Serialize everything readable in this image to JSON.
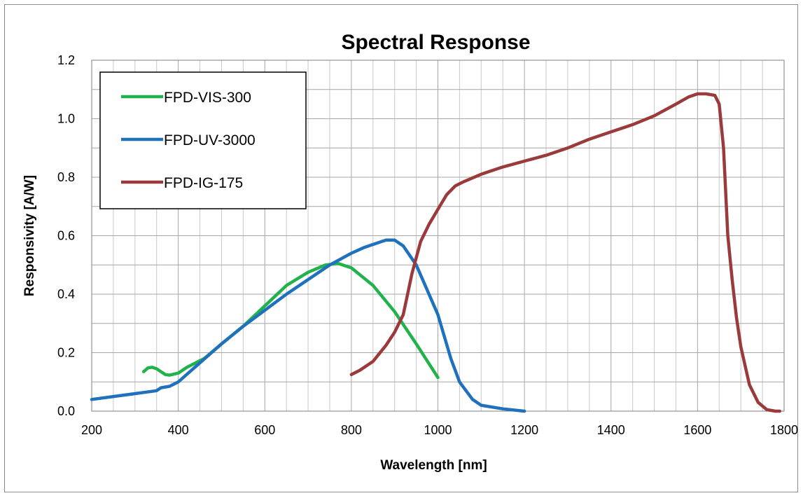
{
  "chart_data": {
    "type": "line",
    "title": "Spectral Response",
    "xlabel": "Wavelength [nm]",
    "ylabel": "Responsivity [A/W]",
    "xlim": [
      200,
      1800
    ],
    "ylim": [
      0.0,
      1.2
    ],
    "x_ticks": [
      "200",
      "400",
      "600",
      "800",
      "1000",
      "1200",
      "1400",
      "1600",
      "1800"
    ],
    "y_ticks": [
      "0.0",
      "0.2",
      "0.4",
      "0.6",
      "0.8",
      "1.0",
      "1.2"
    ],
    "grid": true,
    "legend_position": "top-left",
    "series": [
      {
        "name": "FPD-VIS-300",
        "color": "#21b24b",
        "x": [
          320,
          330,
          340,
          350,
          360,
          370,
          380,
          400,
          420,
          460,
          500,
          550,
          600,
          650,
          700,
          740,
          770,
          800,
          850,
          900,
          950,
          1000
        ],
        "y": [
          0.135,
          0.148,
          0.15,
          0.145,
          0.135,
          0.125,
          0.123,
          0.13,
          0.15,
          0.18,
          0.23,
          0.29,
          0.36,
          0.43,
          0.475,
          0.5,
          0.505,
          0.49,
          0.43,
          0.34,
          0.23,
          0.115
        ]
      },
      {
        "name": "FPD-UV-3000",
        "color": "#1f71be",
        "x": [
          200,
          250,
          300,
          350,
          360,
          380,
          400,
          450,
          500,
          550,
          600,
          650,
          700,
          750,
          800,
          830,
          860,
          880,
          900,
          920,
          950,
          1000,
          1030,
          1050,
          1080,
          1100,
          1150,
          1200
        ],
        "y": [
          0.04,
          0.05,
          0.06,
          0.07,
          0.08,
          0.085,
          0.1,
          0.165,
          0.23,
          0.29,
          0.345,
          0.4,
          0.45,
          0.5,
          0.54,
          0.56,
          0.575,
          0.585,
          0.585,
          0.565,
          0.5,
          0.33,
          0.18,
          0.1,
          0.04,
          0.02,
          0.008,
          0.0
        ]
      },
      {
        "name": "FPD-IG-175",
        "color": "#9a3a3a",
        "x": [
          800,
          820,
          850,
          880,
          900,
          920,
          940,
          960,
          980,
          1000,
          1020,
          1040,
          1060,
          1100,
          1150,
          1200,
          1250,
          1300,
          1350,
          1400,
          1450,
          1500,
          1550,
          1580,
          1600,
          1620,
          1640,
          1650,
          1660,
          1670,
          1680,
          1690,
          1700,
          1720,
          1740,
          1760,
          1780,
          1790
        ],
        "y": [
          0.125,
          0.14,
          0.17,
          0.225,
          0.27,
          0.33,
          0.47,
          0.58,
          0.64,
          0.69,
          0.74,
          0.77,
          0.785,
          0.81,
          0.835,
          0.855,
          0.875,
          0.9,
          0.93,
          0.955,
          0.98,
          1.01,
          1.05,
          1.075,
          1.085,
          1.085,
          1.08,
          1.05,
          0.9,
          0.6,
          0.45,
          0.32,
          0.22,
          0.09,
          0.03,
          0.005,
          0.0,
          0.0
        ]
      }
    ]
  }
}
